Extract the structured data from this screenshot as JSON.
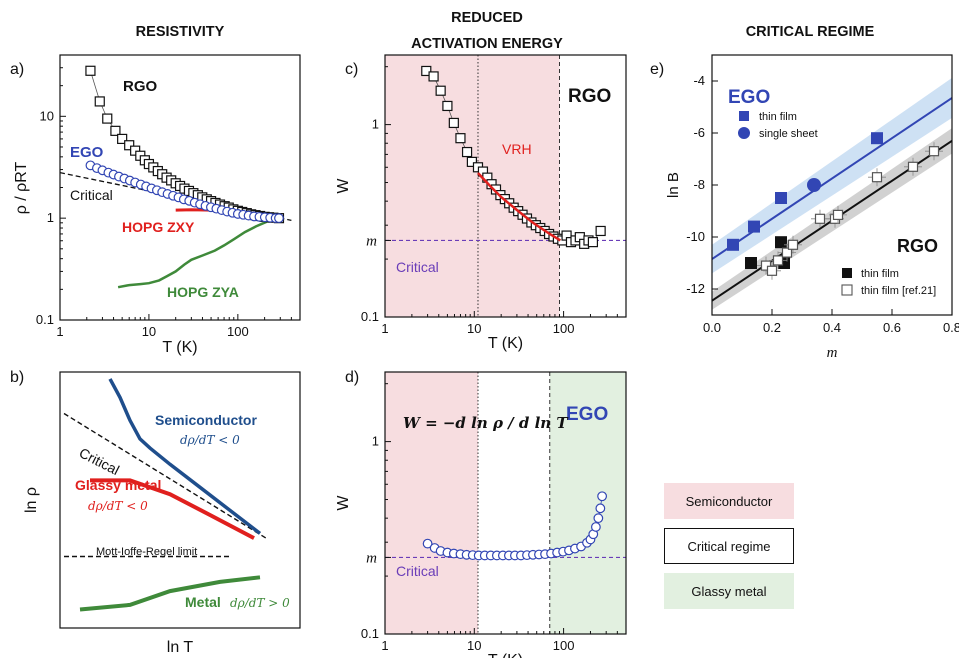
{
  "headers": {
    "resistivity": "RESISTIVITY",
    "activation_l1": "REDUCED",
    "activation_l2": "ACTIVATION ENERGY",
    "critical_regime": "CRITICAL REGIME"
  },
  "panel_labels": {
    "a": "a)",
    "b": "b)",
    "c": "c)",
    "d": "d)",
    "e": "e)"
  },
  "colors": {
    "black": "#111111",
    "blue": "#3246b4",
    "red": "#e0201e",
    "green": "#3f8a3a",
    "navy": "#1f4e8c",
    "purple": "#6a3db8",
    "pink_bg": "#f7dde0",
    "green_bg": "#e2f0e0",
    "band_blue": "#c9def3",
    "band_gray": "#cccccc"
  },
  "legend": {
    "semiconductor": "Semiconductor",
    "critical": "Critical regime",
    "glassy": "Glassy metal"
  },
  "chart_data": [
    {
      "id": "a",
      "type": "line",
      "xscale": "log",
      "yscale": "log",
      "xlim": [
        1,
        500
      ],
      "ylim": [
        0.1,
        40
      ],
      "xlabel": "T (K)",
      "ylabel": "ρ / ρRT",
      "x_ticks": [
        "1",
        "10",
        "100"
      ],
      "y_ticks": [
        "0.1",
        "1",
        "10"
      ],
      "annotations": [
        "RGO",
        "EGO",
        "Critical",
        "HOPG ZXY",
        "HOPG ZYA"
      ],
      "series": [
        {
          "name": "RGO",
          "marker": "open-square",
          "x": [
            2.2,
            2.8,
            3.4,
            4.2,
            5.0,
            6.0,
            7.0,
            8.0,
            9.0,
            10.0,
            11.2,
            12.6,
            14.1,
            15.8,
            17.8,
            20,
            22.4,
            25.1,
            28.2,
            31.6,
            35.5,
            39.8,
            44.7,
            50,
            56,
            63,
            71,
            79,
            89,
            100,
            112,
            126,
            141,
            158,
            178,
            200,
            224,
            251,
            290
          ],
          "y": [
            28,
            14,
            9.5,
            7.2,
            6.0,
            5.2,
            4.6,
            4.1,
            3.7,
            3.4,
            3.15,
            2.9,
            2.7,
            2.5,
            2.35,
            2.2,
            2.07,
            1.95,
            1.85,
            1.76,
            1.68,
            1.6,
            1.53,
            1.47,
            1.41,
            1.36,
            1.31,
            1.27,
            1.22,
            1.18,
            1.15,
            1.12,
            1.09,
            1.07,
            1.05,
            1.03,
            1.02,
            1.01,
            1.0
          ]
        },
        {
          "name": "EGO",
          "marker": "open-circle",
          "x": [
            2.2,
            2.6,
            3.0,
            3.5,
            4.0,
            4.6,
            5.3,
            6.1,
            7.0,
            8.1,
            9.3,
            10.7,
            12.3,
            14.1,
            16.2,
            18.7,
            21.5,
            24.7,
            28.4,
            32.7,
            37.6,
            43.3,
            49.8,
            57.3,
            65.9,
            75.8,
            87.2,
            100,
            115,
            132,
            152,
            175,
            201,
            231,
            266,
            290
          ],
          "y": [
            3.3,
            3.1,
            2.95,
            2.8,
            2.68,
            2.56,
            2.45,
            2.34,
            2.24,
            2.14,
            2.05,
            1.96,
            1.88,
            1.8,
            1.73,
            1.66,
            1.6,
            1.53,
            1.48,
            1.42,
            1.37,
            1.32,
            1.28,
            1.24,
            1.2,
            1.16,
            1.13,
            1.1,
            1.08,
            1.06,
            1.04,
            1.03,
            1.02,
            1.01,
            1.0,
            1.0
          ]
        },
        {
          "name": "Critical",
          "style": "dashed",
          "x": [
            1,
            400
          ],
          "y": [
            2.8,
            0.95
          ]
        },
        {
          "name": "HOPG ZXY",
          "x": [
            20,
            30,
            50,
            80,
            120,
            180,
            250,
            300
          ],
          "y": [
            1.2,
            1.21,
            1.2,
            1.17,
            1.12,
            1.07,
            1.02,
            1.0
          ]
        },
        {
          "name": "HOPG ZYA",
          "x": [
            4.5,
            6,
            8,
            10,
            13,
            16,
            20,
            25,
            30,
            40,
            55,
            70,
            90,
            120,
            160,
            210,
            270,
            300
          ],
          "y": [
            0.21,
            0.22,
            0.225,
            0.23,
            0.245,
            0.27,
            0.3,
            0.35,
            0.39,
            0.43,
            0.48,
            0.54,
            0.62,
            0.73,
            0.83,
            0.92,
            0.98,
            1.0
          ]
        }
      ]
    },
    {
      "id": "b",
      "type": "line",
      "xlabel": "ln T",
      "ylabel": "ln ρ",
      "annotations": [
        "Semiconductor",
        "dρ/dT < 0",
        "Critical",
        "Glassy metal",
        "dρ/dT < 0",
        "Mott-Ioffe-Regel limit",
        "Metal",
        "dρ/dT > 0"
      ],
      "series": [
        {
          "name": "Semiconductor",
          "x": [
            0.0,
            0.05,
            0.1,
            0.15,
            0.2,
            0.3,
            0.45,
            0.6,
            0.75
          ],
          "y": [
            1.0,
            0.92,
            0.82,
            0.74,
            0.7,
            0.63,
            0.53,
            0.43,
            0.33
          ]
        },
        {
          "name": "Critical",
          "style": "dashed",
          "x": [
            -0.23,
            0.78
          ],
          "y": [
            0.85,
            0.31
          ]
        },
        {
          "name": "Glassy metal",
          "x": [
            -0.1,
            0.1,
            0.3,
            0.5,
            0.72
          ],
          "y": [
            0.56,
            0.56,
            0.5,
            0.41,
            0.31
          ]
        },
        {
          "name": "Mott-Ioffe-Regel limit",
          "style": "dashed",
          "x": [
            -0.23,
            0.6
          ],
          "y": [
            0.23,
            0.23
          ]
        },
        {
          "name": "Metal",
          "x": [
            -0.15,
            0.1,
            0.3,
            0.55,
            0.75
          ],
          "y": [
            0.0,
            0.02,
            0.08,
            0.12,
            0.14
          ]
        }
      ]
    },
    {
      "id": "c",
      "type": "scatter",
      "xscale": "log",
      "yscale": "log",
      "xlim": [
        1,
        500
      ],
      "ylim": [
        0.1,
        2.3
      ],
      "xlabel": "T (K)",
      "ylabel": "W",
      "x_ticks": [
        "1",
        "10",
        "100"
      ],
      "y_ticks": [
        "0.1",
        "1"
      ],
      "y_special_tick": {
        "label": "m",
        "value": 0.25
      },
      "annotations": [
        "RGO",
        "VRH",
        "Critical"
      ],
      "regions": [
        {
          "name": "Semiconductor",
          "x": [
            1,
            90
          ]
        }
      ],
      "vlines": [
        {
          "x": 11,
          "style": "dotted"
        },
        {
          "x": 90,
          "style": "dashed"
        }
      ],
      "hlines": [
        {
          "y": 0.25,
          "name": "Critical",
          "style": "dashed"
        }
      ],
      "series": [
        {
          "name": "RGO",
          "marker": "open-square",
          "x": [
            2.9,
            3.5,
            4.2,
            5.0,
            5.9,
            7.0,
            8.3,
            9.4,
            11.0,
            12.5,
            14.0,
            15.6,
            17.5,
            19.6,
            22,
            24.6,
            27.6,
            31,
            34.7,
            38.9,
            43.6,
            48.9,
            54.8,
            61.4,
            68.8,
            77.1,
            86.4,
            96.8,
            108,
            121,
            136,
            152,
            170,
            190,
            213,
            260
          ],
          "y": [
            1.9,
            1.78,
            1.5,
            1.25,
            1.02,
            0.85,
            0.72,
            0.64,
            0.6,
            0.57,
            0.53,
            0.49,
            0.46,
            0.43,
            0.41,
            0.39,
            0.37,
            0.355,
            0.34,
            0.325,
            0.31,
            0.3,
            0.29,
            0.28,
            0.27,
            0.262,
            0.255,
            0.25,
            0.265,
            0.245,
            0.25,
            0.26,
            0.24,
            0.25,
            0.245,
            0.28
          ]
        },
        {
          "name": "VRH",
          "style": "line",
          "x": [
            11,
            15,
            20,
            30,
            45,
            70,
            92
          ],
          "y": [
            0.56,
            0.48,
            0.42,
            0.36,
            0.31,
            0.27,
            0.25
          ]
        }
      ]
    },
    {
      "id": "d",
      "type": "scatter",
      "xscale": "log",
      "yscale": "log",
      "xlim": [
        1,
        500
      ],
      "ylim": [
        0.1,
        2.3
      ],
      "xlabel": "T (K)",
      "ylabel": "W",
      "x_ticks": [
        "1",
        "10",
        "100"
      ],
      "y_ticks": [
        "0.1",
        "1"
      ],
      "y_special_tick": {
        "label": "m",
        "value": 0.25
      },
      "formula": "W = −d ln ρ / d ln T",
      "annotations": [
        "EGO",
        "Critical"
      ],
      "regions": [
        {
          "name": "Semiconductor",
          "x": [
            1,
            11
          ]
        },
        {
          "name": "Glassy metal",
          "x": [
            70,
            500
          ]
        }
      ],
      "vlines": [
        {
          "x": 11,
          "style": "dotted"
        },
        {
          "x": 70,
          "style": "dashed"
        }
      ],
      "hlines": [
        {
          "y": 0.25,
          "name": "Critical",
          "style": "dashed"
        }
      ],
      "series": [
        {
          "name": "EGO",
          "marker": "open-circle",
          "x": [
            3.0,
            3.6,
            4.2,
            5.0,
            5.9,
            7.0,
            8.2,
            9.6,
            11.2,
            13.1,
            15.3,
            17.9,
            20.9,
            24.4,
            28.5,
            33.3,
            38.9,
            45.4,
            53,
            62,
            72.4,
            84.6,
            98.8,
            115,
            134,
            157,
            183,
            200,
            215,
            230,
            245,
            258,
            270
          ],
          "y": [
            0.295,
            0.28,
            0.27,
            0.265,
            0.262,
            0.26,
            0.258,
            0.257,
            0.256,
            0.256,
            0.256,
            0.256,
            0.256,
            0.256,
            0.256,
            0.256,
            0.257,
            0.258,
            0.259,
            0.26,
            0.262,
            0.265,
            0.268,
            0.272,
            0.278,
            0.285,
            0.298,
            0.31,
            0.33,
            0.36,
            0.4,
            0.45,
            0.52
          ]
        }
      ]
    },
    {
      "id": "e",
      "type": "scatter",
      "xlim": [
        0.0,
        0.8
      ],
      "ylim": [
        -13,
        -3
      ],
      "xlabel": "m",
      "ylabel": "ln B",
      "x_ticks": [
        "0.0",
        "0.2",
        "0.4",
        "0.6",
        "0.8"
      ],
      "y_ticks": [
        "-4",
        "-6",
        "-8",
        "-10",
        "-12"
      ],
      "annotations": [
        "EGO",
        "RGO"
      ],
      "legend_entries": [
        "thin film",
        "single sheet",
        "thin film",
        "thin film [ref.21]"
      ],
      "series": [
        {
          "name": "thin film",
          "group": "EGO",
          "marker": "filled-square",
          "x": [
            0.07,
            0.14,
            0.23,
            0.55
          ],
          "y": [
            -10.3,
            -9.6,
            -8.5,
            -6.2
          ]
        },
        {
          "name": "single sheet",
          "group": "EGO",
          "marker": "filled-circle",
          "x": [
            0.34
          ],
          "y": [
            -8.0
          ]
        },
        {
          "name": "thin film",
          "group": "RGO",
          "marker": "filled-square",
          "x": [
            0.13,
            0.23,
            0.24
          ],
          "y": [
            -11.0,
            -10.2,
            -11.0
          ]
        },
        {
          "name": "thin film [ref.21]",
          "group": "RGO",
          "marker": "open-square",
          "x": [
            0.18,
            0.2,
            0.22,
            0.25,
            0.27,
            0.36,
            0.41,
            0.42,
            0.55,
            0.67,
            0.74
          ],
          "y": [
            -11.1,
            -11.3,
            -10.9,
            -10.6,
            -10.3,
            -9.3,
            -9.3,
            -9.15,
            -7.7,
            -7.3,
            -6.7
          ]
        },
        {
          "name": "EGO fit",
          "style": "line",
          "x": [
            0.0,
            0.8
          ],
          "y": [
            -10.85,
            -4.65
          ]
        },
        {
          "name": "RGO fit",
          "style": "line",
          "x": [
            0.0,
            0.8
          ],
          "y": [
            -12.45,
            -6.3
          ]
        }
      ]
    }
  ]
}
